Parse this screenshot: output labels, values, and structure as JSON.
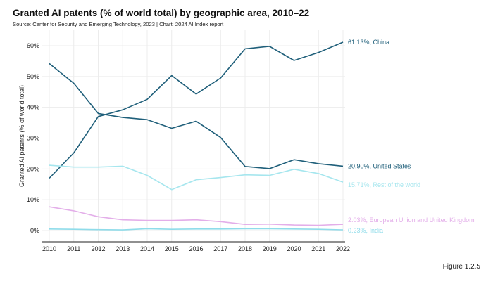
{
  "chart_data": {
    "type": "line",
    "title": "Granted AI patents (% of world total) by geographic area, 2010–22",
    "subtitle": "Source: Center for Security and Emerging Technology, 2023 | Chart: 2024 AI Index report",
    "xlabel": "",
    "ylabel": "Granted AI patents (% of world total)",
    "ylim": [
      0,
      65
    ],
    "yticks": [
      0,
      10,
      20,
      30,
      40,
      50,
      60
    ],
    "ytick_labels": [
      "0%",
      "10%",
      "20%",
      "30%",
      "40%",
      "50%",
      "60%"
    ],
    "grid": true,
    "x": [
      2010,
      2011,
      2012,
      2013,
      2014,
      2015,
      2016,
      2017,
      2018,
      2019,
      2020,
      2021,
      2022
    ],
    "series": [
      {
        "name": "China",
        "color": "#1f5f7a",
        "end_label": "61.13%, China",
        "values": [
          17.0,
          25.2,
          37.0,
          39.2,
          42.6,
          50.3,
          44.3,
          49.5,
          59.0,
          59.8,
          55.2,
          57.8,
          61.13
        ]
      },
      {
        "name": "United States",
        "color": "#1f5f7a",
        "end_label": "20.90%, United States",
        "values": [
          54.2,
          47.8,
          38.0,
          36.7,
          36.0,
          33.2,
          35.5,
          30.2,
          20.8,
          20.1,
          23.0,
          21.7,
          20.9
        ]
      },
      {
        "name": "Rest of the world",
        "color": "#a6e6ee",
        "end_label": "15.71%, Rest of the world",
        "values": [
          21.2,
          20.6,
          20.6,
          20.9,
          17.9,
          13.3,
          16.5,
          17.2,
          18.1,
          17.9,
          19.9,
          18.5,
          15.71
        ]
      },
      {
        "name": "European Union and United Kingdom",
        "color": "#e3aee9",
        "end_label": "2.03%, European Union and United Kingdom",
        "values": [
          7.7,
          6.4,
          4.5,
          3.5,
          3.3,
          3.3,
          3.5,
          2.9,
          2.0,
          2.1,
          1.8,
          1.7,
          2.03
        ]
      },
      {
        "name": "India",
        "color": "#8fdcea",
        "end_label": "0.23%, India",
        "values": [
          0.5,
          0.4,
          0.3,
          0.2,
          0.6,
          0.4,
          0.5,
          0.5,
          0.6,
          0.6,
          0.5,
          0.4,
          0.23
        ]
      }
    ]
  },
  "figure_label": "Figure 1.2.5"
}
